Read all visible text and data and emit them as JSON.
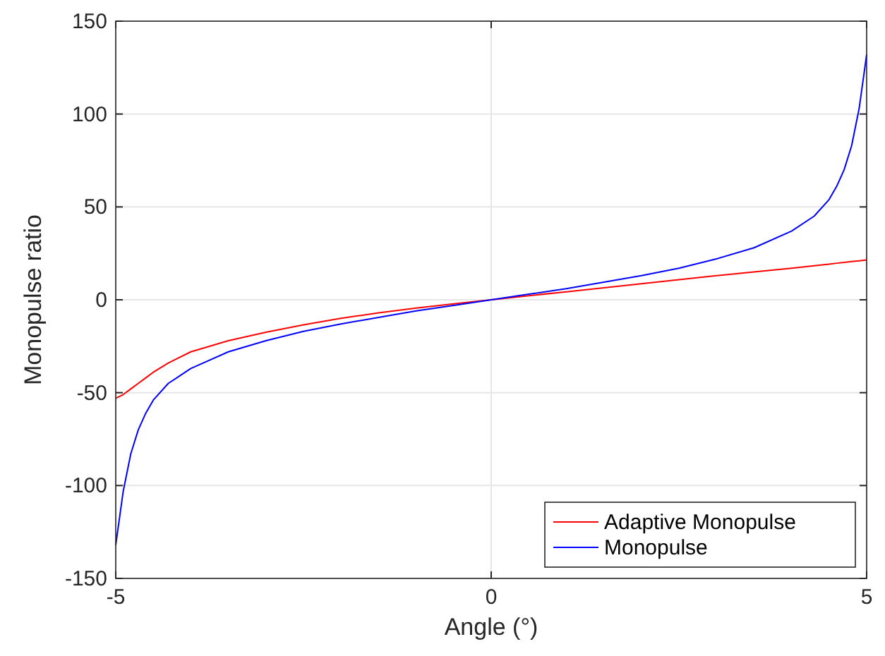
{
  "chart_data": {
    "type": "line",
    "xlabel": "Angle (°)",
    "ylabel": "Monopulse ratio",
    "xlim": [
      -5,
      5
    ],
    "ylim": [
      -150,
      150
    ],
    "xticks": [
      -5,
      0,
      5
    ],
    "yticks": [
      -150,
      -100,
      -50,
      0,
      50,
      100,
      150
    ],
    "grid": true,
    "legend": "bottom right",
    "x": [
      -5,
      -4.9,
      -4.8,
      -4.7,
      -4.6,
      -4.5,
      -4.3,
      -4,
      -3.5,
      -3,
      -2.5,
      -2,
      -1.5,
      -1,
      -0.5,
      0,
      0.5,
      1,
      1.5,
      2,
      2.5,
      3,
      3.5,
      4,
      4.3,
      4.5,
      4.6,
      4.7,
      4.8,
      4.9,
      5
    ],
    "series": [
      {
        "name": "Adaptive Monopulse",
        "color": "#ff0000",
        "values": [
          -53,
          -51,
          -48,
          -45,
          -42,
          -39,
          -34,
          -28,
          -22,
          -17.5,
          -13.5,
          -10,
          -7,
          -4.5,
          -2.2,
          0,
          2.2,
          4.3,
          6.5,
          8.6,
          10.8,
          13,
          15,
          17,
          18.3,
          19.2,
          19.7,
          20.1,
          20.6,
          21,
          21.5
        ]
      },
      {
        "name": "Monopulse",
        "color": "#0000ff",
        "values": [
          -132,
          -103,
          -83,
          -70,
          -61,
          -54,
          -45,
          -37,
          -28,
          -22,
          -17,
          -13,
          -9.5,
          -6,
          -3,
          0,
          3,
          6,
          9.5,
          13,
          17,
          22,
          28,
          37,
          45,
          54,
          61,
          70,
          83,
          103,
          132
        ]
      }
    ]
  }
}
